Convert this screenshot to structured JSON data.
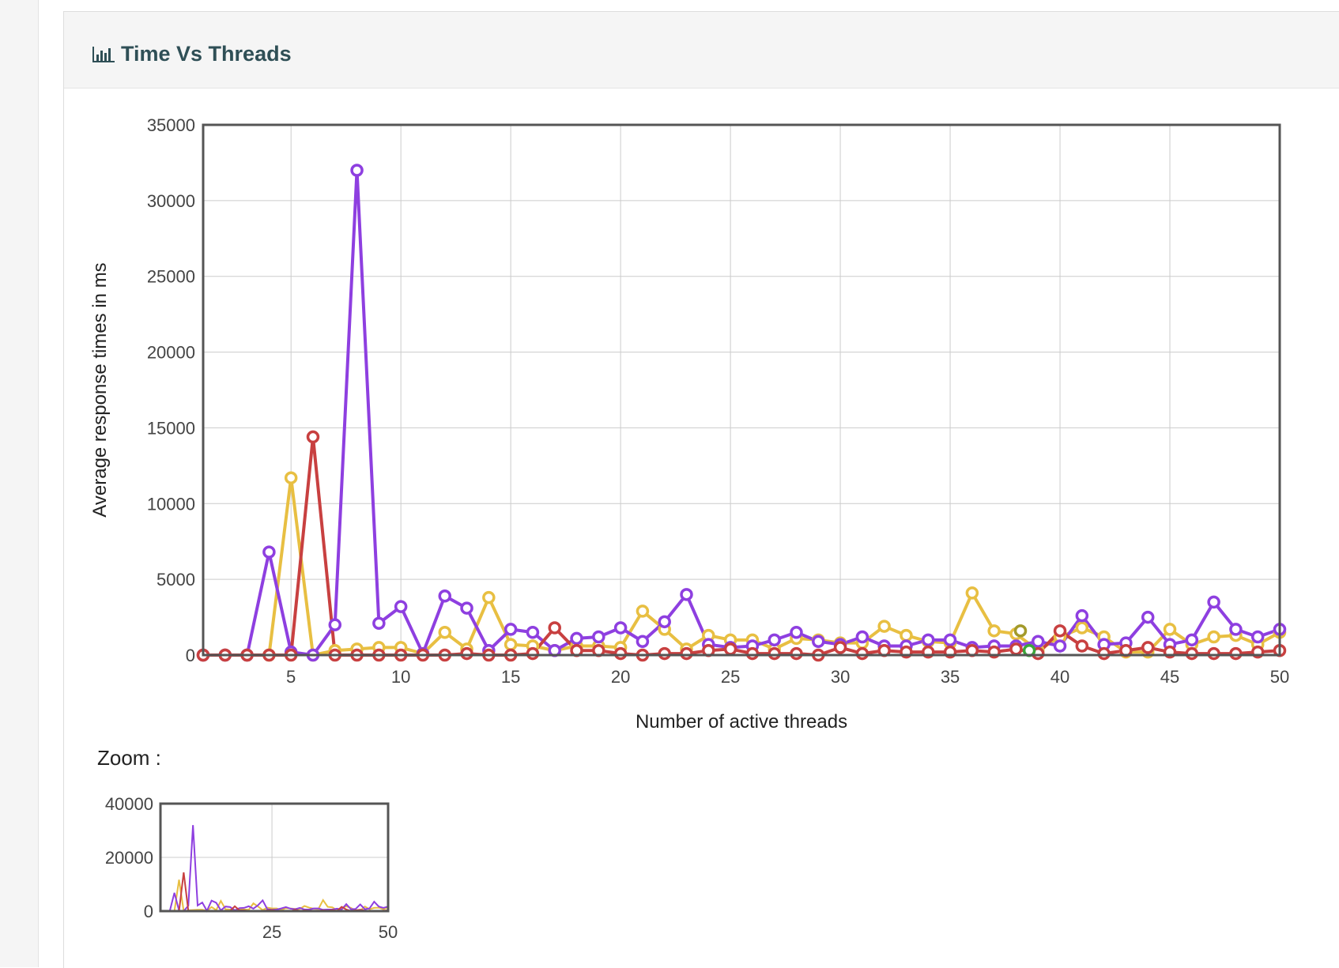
{
  "panel": {
    "title": "Time Vs Threads",
    "icon": "bar-chart-icon"
  },
  "zoom": {
    "label": "Zoom :"
  },
  "colors": {
    "purple": "#8e3fe0",
    "yellow": "#e8bf42",
    "red": "#c84040",
    "olive": "#a39a2a",
    "green": "#3aa63a",
    "grid": "#cccccc",
    "axis": "#555555"
  },
  "chart_data": [
    {
      "type": "line",
      "xlabel": "Number of active threads",
      "ylabel": "Average response times in ms",
      "xlim": [
        1,
        50
      ],
      "ylim": [
        0,
        35000
      ],
      "xticks": [
        5,
        10,
        15,
        20,
        25,
        30,
        35,
        40,
        45,
        50
      ],
      "yticks": [
        0,
        5000,
        10000,
        15000,
        20000,
        25000,
        30000,
        35000
      ],
      "grid": true,
      "x": [
        1,
        2,
        3,
        4,
        5,
        6,
        7,
        8,
        9,
        10,
        11,
        12,
        13,
        14,
        15,
        16,
        17,
        18,
        19,
        20,
        21,
        22,
        23,
        24,
        25,
        26,
        27,
        28,
        29,
        30,
        31,
        32,
        33,
        34,
        35,
        36,
        37,
        38,
        39,
        40,
        41,
        42,
        43,
        44,
        45,
        46,
        47,
        48,
        49,
        50
      ],
      "series": [
        {
          "color": "#e8bf42",
          "values": [
            0,
            0,
            0,
            0,
            11700,
            0,
            300,
            400,
            500,
            500,
            100,
            1500,
            400,
            3800,
            700,
            600,
            300,
            600,
            600,
            500,
            2900,
            1700,
            400,
            1300,
            1000,
            1000,
            400,
            1100,
            1000,
            800,
            800,
            1900,
            1300,
            900,
            800,
            4100,
            1600,
            1400,
            300,
            1200,
            1800,
            1200,
            200,
            200,
            1700,
            700,
            1200,
            1300,
            700,
            1500
          ]
        },
        {
          "color": "#8e3fe0",
          "values": [
            0,
            0,
            0,
            6800,
            200,
            0,
            2000,
            32000,
            2100,
            3200,
            100,
            3900,
            3100,
            300,
            1700,
            1500,
            300,
            1100,
            1200,
            1800,
            900,
            2200,
            4000,
            700,
            500,
            600,
            1000,
            1500,
            900,
            700,
            1200,
            600,
            600,
            1000,
            1000,
            500,
            600,
            600,
            900,
            600,
            2600,
            700,
            800,
            2500,
            700,
            1000,
            3500,
            1700,
            1200,
            1700
          ]
        },
        {
          "color": "#c84040",
          "values": [
            0,
            0,
            0,
            0,
            0,
            14400,
            0,
            0,
            0,
            0,
            0,
            0,
            100,
            0,
            0,
            100,
            1800,
            300,
            300,
            100,
            0,
            100,
            100,
            300,
            400,
            100,
            100,
            100,
            0,
            500,
            100,
            300,
            200,
            200,
            200,
            300,
            200,
            400,
            100,
            1600,
            600,
            100,
            300,
            500,
            200,
            100,
            100,
            100,
            200,
            300
          ]
        },
        {
          "color": "#a39a2a",
          "points": [
            [
              38.2,
              1600
            ]
          ]
        },
        {
          "color": "#3aa63a",
          "points": [
            [
              38.6,
              300
            ]
          ]
        }
      ]
    },
    {
      "type": "line",
      "xlim": [
        1,
        50
      ],
      "ylim": [
        0,
        40000
      ],
      "xticks": [
        25,
        50
      ],
      "yticks": [
        0,
        20000,
        40000
      ],
      "grid": true,
      "series_ref": "same as main chart"
    }
  ]
}
